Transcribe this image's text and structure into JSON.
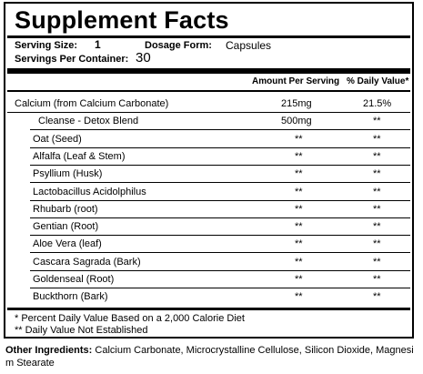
{
  "title": "Supplement Facts",
  "serving": {
    "size_label": "Serving Size:",
    "size_value": "1",
    "form_label": "Dosage Form:",
    "form_value": "Capsules",
    "per_container_label": "Servings Per Container:",
    "per_container_value": "30"
  },
  "columns": {
    "amount": "Amount Per Serving",
    "dv": "% Daily Value*"
  },
  "rows": [
    {
      "name": "Calcium (from Calcium Carbonate)",
      "amount": "215mg",
      "dv": "21.5%"
    },
    {
      "name": "Cleanse - Detox Blend",
      "amount": "500mg",
      "dv": "**"
    },
    {
      "name": "Oat (Seed)",
      "amount": "**",
      "dv": "**"
    },
    {
      "name": "Alfalfa (Leaf & Stem)",
      "amount": "**",
      "dv": "**"
    },
    {
      "name": "Psyllium (Husk)",
      "amount": "**",
      "dv": "**"
    },
    {
      "name": "Lactobacillus Acidolphilus",
      "amount": "**",
      "dv": "**"
    },
    {
      "name": "Rhubarb (root)",
      "amount": "**",
      "dv": "**"
    },
    {
      "name": "Gentian  (Root)",
      "amount": "**",
      "dv": "**"
    },
    {
      "name": "Aloe Vera (leaf)",
      "amount": "**",
      "dv": "**"
    },
    {
      "name": "Cascara Sagrada (Bark)",
      "amount": "**",
      "dv": "**"
    },
    {
      "name": "Goldenseal (Root)",
      "amount": "**",
      "dv": "**"
    },
    {
      "name": "Buckthorn (Bark)",
      "amount": "**",
      "dv": "**"
    }
  ],
  "footnotes": {
    "note1": "* Percent Daily Value Based on a 2,000 Calorie Diet",
    "note2": "** Daily Value Not Established"
  },
  "other_ingredients": {
    "label": "Other Ingredients:",
    "text": " Calcium Carbonate, Microcrystalline Cellulose, Silicon Dioxide, Magnesi  m Stearate"
  }
}
